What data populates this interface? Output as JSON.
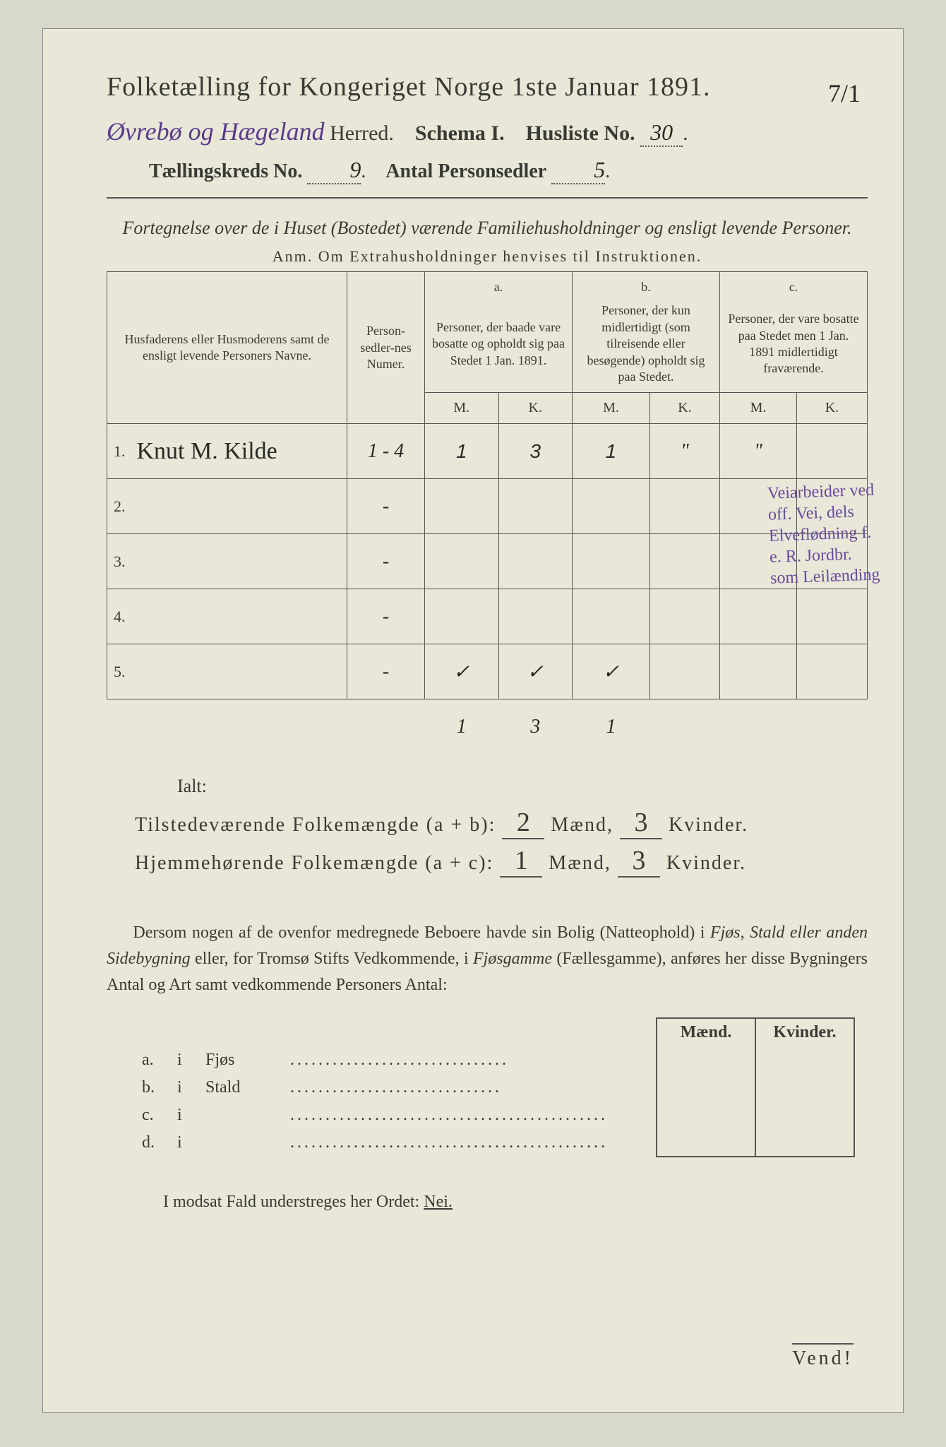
{
  "corner_mark": "7/1",
  "title": {
    "text": "Folketælling for Kongeriget Norge 1ste Januar 1891."
  },
  "header": {
    "herred_script": "Øvrebø og Hægeland",
    "herred_label": "Herred.",
    "schema": "Schema I.",
    "husliste_label": "Husliste No.",
    "husliste_no": "30",
    "kreds_label": "Tællingskreds No.",
    "kreds_no": "9",
    "antal_label": "Antal Personsedler",
    "antal_val": "5"
  },
  "subtitle": "Fortegnelse over de i Huset (Bostedet) værende Familiehusholdninger og ensligt levende Personer.",
  "anm": "Anm.  Om Extrahusholdninger henvises til Instruktionen.",
  "table": {
    "col_names": "Husfaderens eller Husmoderens samt de ensligt levende Personers Navne.",
    "col_numer": "Person-sedler-nes Numer.",
    "col_a_head": "a.",
    "col_a": "Personer, der baade vare bosatte og opholdt sig paa Stedet 1 Jan. 1891.",
    "col_b_head": "b.",
    "col_b": "Personer, der kun midlertidigt (som tilreisende eller besøgende) opholdt sig paa Stedet.",
    "col_c_head": "c.",
    "col_c": "Personer, der vare bosatte paa Stedet men 1 Jan. 1891 midlertidigt fraværende.",
    "mk_m": "M.",
    "mk_k": "K.",
    "rows": [
      {
        "n": "1.",
        "name": "Knut M. Kilde",
        "numer": "1 - 4",
        "am": "1",
        "ak": "3",
        "bm": "1",
        "bk": "\"",
        "cm": "\"",
        "ck": ""
      },
      {
        "n": "2.",
        "name": "",
        "numer": "-",
        "am": "",
        "ak": "",
        "bm": "",
        "bk": "",
        "cm": "",
        "ck": ""
      },
      {
        "n": "3.",
        "name": "",
        "numer": "-",
        "am": "",
        "ak": "",
        "bm": "",
        "bk": "",
        "cm": "",
        "ck": ""
      },
      {
        "n": "4.",
        "name": "",
        "numer": "-",
        "am": "",
        "ak": "",
        "bm": "",
        "bk": "",
        "cm": "",
        "ck": ""
      },
      {
        "n": "5.",
        "name": "",
        "numer": "-",
        "am": "✓",
        "ak": "✓",
        "bm": "✓",
        "bk": "",
        "cm": "",
        "ck": ""
      }
    ],
    "totals": {
      "am": "1",
      "ak": "3",
      "bm": "1"
    }
  },
  "side_note": "Veiarbeider ved off. Vei, dels Elveflødning f. e. R. Jordbr. som Leilænding",
  "ialt": "Ialt:",
  "sums": {
    "line1_label": "Tilstedeværende Folkemængde (a + b):",
    "line1_m": "2",
    "line1_k": "3",
    "line2_label": "Hjemmehørende Folkemængde (a + c):",
    "line2_m": "1",
    "line2_k": "3",
    "maend": "Mænd,",
    "kvinder": "Kvinder."
  },
  "para": "Dersom nogen af de ovenfor medregnede Beboere havde sin Bolig (Natteophold) i Fjøs, Stald eller anden Sidebygning eller, for Tromsø Stifts Vedkommende, i Fjøsgamme (Fællesgamme), anføres her disse Bygningers Antal og Art samt vedkommende Personers Antal:",
  "bottom": {
    "maend": "Mænd.",
    "kvinder": "Kvinder.",
    "rows": [
      {
        "k": "a.",
        "i": "i",
        "label": "Fjøs",
        "dots": "..............................."
      },
      {
        "k": "b.",
        "i": "i",
        "label": "Stald",
        "dots": ".............................."
      },
      {
        "k": "c.",
        "i": "i",
        "label": "",
        "dots": "............................................."
      },
      {
        "k": "d.",
        "i": "i",
        "label": "",
        "dots": "............................................."
      }
    ]
  },
  "nei": {
    "pre": "I modsat Fald understreges her Ordet:",
    "word": "Nei."
  },
  "vend": "Vend!"
}
